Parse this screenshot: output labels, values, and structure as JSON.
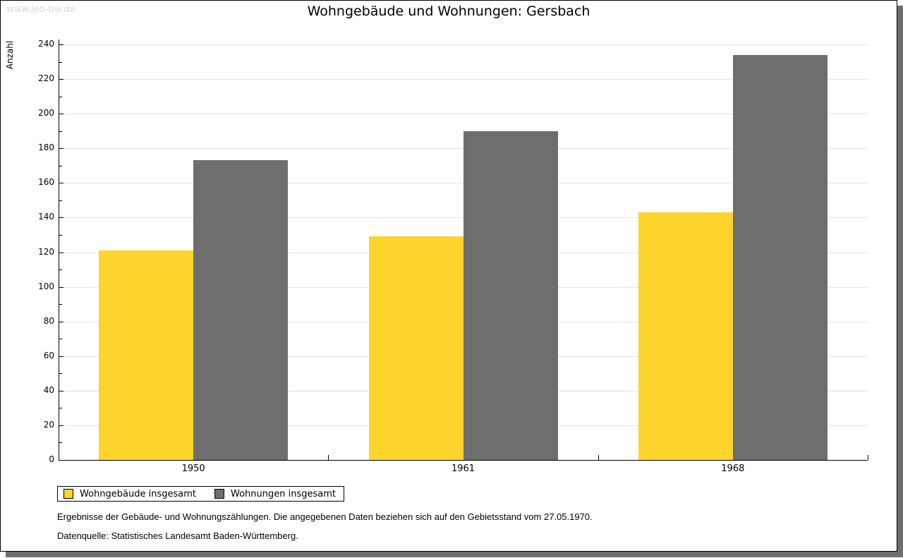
{
  "watermark": "www.leo-bw.de",
  "header": {
    "title": "Wohngebäude und Wohnungen: Gersbach"
  },
  "chart_data": {
    "type": "bar",
    "title": "Wohngebäude und Wohnungen: Gersbach",
    "ylabel": "Anzahl",
    "xlabel": "",
    "categories": [
      "1950",
      "1961",
      "1968"
    ],
    "series": [
      {
        "name": "Wohngebäude insgesamt",
        "color": "#FCD42C",
        "values": [
          121,
          129,
          143
        ]
      },
      {
        "name": "Wohnungen insgesamt",
        "color": "#6E6E6E",
        "values": [
          173,
          190,
          234
        ]
      }
    ],
    "ylim": [
      0,
      240
    ],
    "ytick_step": 20,
    "yminor_tick_step": 10,
    "grid": "horizontal",
    "gridline_color": "#E4E4E4",
    "legend_position": "bottom-left"
  },
  "footer": {
    "line1": "Ergebnisse der Gebäude- und Wohnungszählungen. Die angegebenen Daten beziehen sich auf den Gebietsstand vom 27.05.1970.",
    "line2": "Datenquelle: Statistisches Landesamt Baden-Württemberg."
  }
}
